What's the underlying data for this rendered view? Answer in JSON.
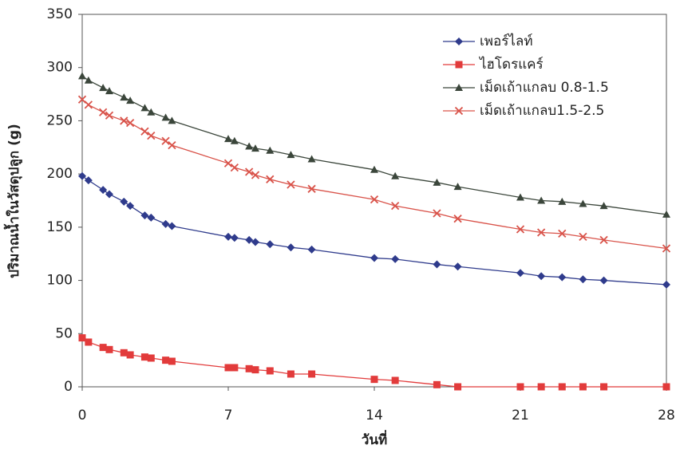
{
  "chart_data": {
    "type": "line",
    "x_label": "วันที่",
    "y_label": "ปริมาณน้ำในวัสดุปลูก (g)",
    "x": [
      0,
      0.3,
      1,
      1.3,
      2,
      2.3,
      3,
      3.3,
      4,
      4.3,
      7,
      7.3,
      8,
      8.3,
      9,
      10,
      11,
      14,
      15,
      17,
      18,
      21,
      22,
      23,
      24,
      25,
      28
    ],
    "xlim": [
      0,
      28
    ],
    "xticks": [
      0,
      7,
      14,
      21,
      28
    ],
    "ylim": [
      0,
      350
    ],
    "yticks": [
      0,
      50,
      100,
      150,
      200,
      250,
      300,
      350
    ],
    "legend": "upper right",
    "series": [
      {
        "name": "เพอร์ไลท์",
        "color": "#2f3b8c",
        "marker": "diamond",
        "values": [
          198,
          194,
          185,
          181,
          174,
          170,
          161,
          159,
          153,
          151,
          141,
          140,
          138,
          136,
          134,
          131,
          129,
          121,
          120,
          115,
          113,
          107,
          104,
          103,
          101,
          100,
          96
        ]
      },
      {
        "name": "ไฮโดรแคร์",
        "color": "#e23b3b",
        "marker": "square",
        "values": [
          46,
          42,
          37,
          35,
          32,
          30,
          28,
          27,
          25,
          24,
          18,
          18,
          17,
          16,
          15,
          12,
          12,
          7,
          6,
          2,
          0,
          0,
          0,
          0,
          0,
          0,
          0
        ]
      },
      {
        "name": "เม็ดเถ้าแกลบ 0.8-1.5",
        "color": "#3b463b",
        "marker": "triangle",
        "values": [
          292,
          288,
          281,
          278,
          272,
          269,
          262,
          258,
          253,
          250,
          233,
          231,
          226,
          224,
          222,
          218,
          214,
          204,
          198,
          192,
          188,
          178,
          175,
          174,
          172,
          170,
          162
        ]
      },
      {
        "name": "เม็ดเถ้าแกลบ1.5-2.5",
        "color": "#d9534a",
        "marker": "x",
        "values": [
          270,
          265,
          258,
          255,
          250,
          248,
          240,
          236,
          231,
          227,
          210,
          206,
          202,
          199,
          195,
          190,
          186,
          176,
          170,
          163,
          158,
          148,
          145,
          144,
          141,
          138,
          130
        ]
      }
    ]
  }
}
